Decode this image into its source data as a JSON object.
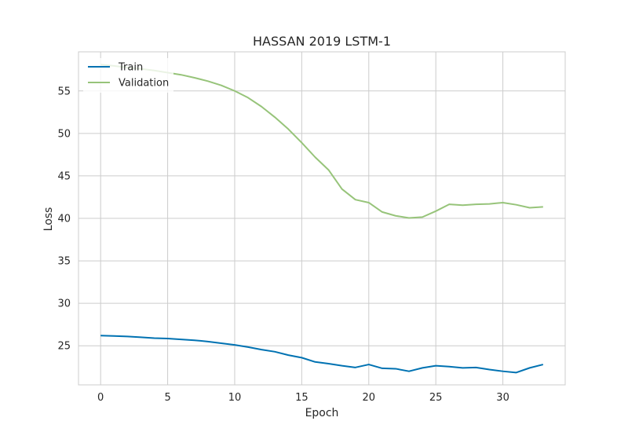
{
  "chart_data": {
    "type": "line",
    "title": "HASSAN 2019 LSTM-1",
    "xlabel": "Epoch",
    "ylabel": "Loss",
    "xlim": [
      -1.65,
      34.65
    ],
    "ylim": [
      20.4,
      59.6
    ],
    "xticks": [
      0,
      5,
      10,
      15,
      20,
      25,
      30
    ],
    "yticks": [
      25,
      30,
      35,
      40,
      45,
      50,
      55
    ],
    "grid": true,
    "legend_position": "top-left",
    "x": [
      0,
      1,
      2,
      3,
      4,
      5,
      6,
      7,
      8,
      9,
      10,
      11,
      12,
      13,
      14,
      15,
      16,
      17,
      18,
      19,
      20,
      21,
      22,
      23,
      24,
      25,
      26,
      27,
      28,
      29,
      30,
      31,
      32,
      33
    ],
    "series": [
      {
        "name": "Train",
        "color": "#0072B2",
        "values": [
          26.2,
          26.15,
          26.1,
          26.0,
          25.9,
          25.85,
          25.75,
          25.65,
          25.5,
          25.3,
          25.1,
          24.85,
          24.55,
          24.3,
          23.9,
          23.6,
          23.1,
          22.9,
          22.65,
          22.45,
          22.8,
          22.35,
          22.3,
          22.0,
          22.4,
          22.65,
          22.55,
          22.4,
          22.45,
          22.2,
          22.0,
          21.85,
          22.4,
          22.8
        ]
      },
      {
        "name": "Validation",
        "color": "#97C47A",
        "values": [
          58.1,
          57.95,
          57.75,
          57.6,
          57.4,
          57.15,
          56.9,
          56.55,
          56.15,
          55.65,
          55.0,
          54.2,
          53.15,
          51.9,
          50.5,
          48.9,
          47.2,
          45.7,
          43.45,
          42.2,
          41.85,
          40.75,
          40.3,
          40.05,
          40.15,
          40.85,
          41.65,
          41.55,
          41.65,
          41.7,
          41.85,
          41.6,
          41.25,
          41.35
        ]
      }
    ]
  }
}
